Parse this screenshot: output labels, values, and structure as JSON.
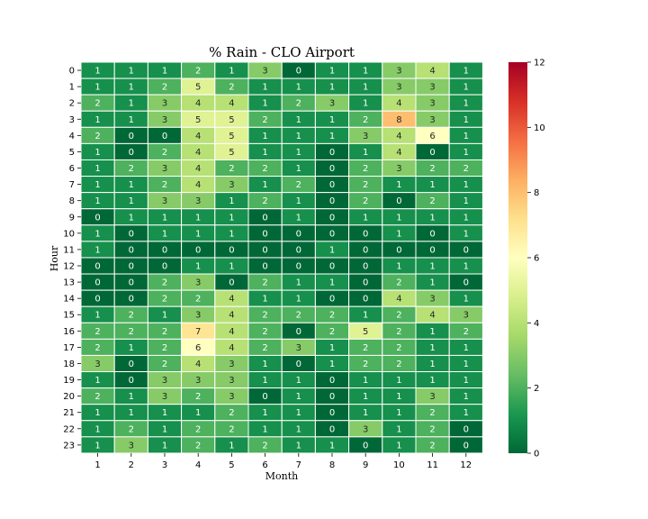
{
  "chart_data": {
    "type": "heatmap",
    "title": "% Rain - CLO Airport",
    "xlabel": "Month",
    "ylabel": "Hour",
    "x_categories": [
      "1",
      "2",
      "3",
      "4",
      "5",
      "6",
      "7",
      "8",
      "9",
      "10",
      "11",
      "12"
    ],
    "y_categories": [
      "0",
      "1",
      "2",
      "3",
      "4",
      "5",
      "6",
      "7",
      "8",
      "9",
      "10",
      "11",
      "12",
      "13",
      "14",
      "15",
      "16",
      "17",
      "18",
      "19",
      "20",
      "21",
      "22",
      "23"
    ],
    "values": [
      [
        1,
        1,
        1,
        2,
        1,
        3,
        0,
        1,
        1,
        3,
        4,
        1
      ],
      [
        1,
        1,
        2,
        5,
        2,
        1,
        1,
        1,
        1,
        3,
        3,
        1
      ],
      [
        2,
        1,
        3,
        4,
        4,
        1,
        2,
        3,
        1,
        4,
        3,
        1
      ],
      [
        1,
        1,
        3,
        5,
        5,
        2,
        1,
        1,
        2,
        8,
        3,
        1
      ],
      [
        2,
        0,
        0,
        4,
        5,
        1,
        1,
        1,
        3,
        4,
        6,
        1
      ],
      [
        1,
        0,
        2,
        4,
        5,
        1,
        1,
        0,
        1,
        4,
        0,
        1
      ],
      [
        1,
        2,
        3,
        4,
        2,
        2,
        1,
        0,
        2,
        3,
        2,
        2
      ],
      [
        1,
        1,
        2,
        4,
        3,
        1,
        2,
        0,
        2,
        1,
        1,
        1
      ],
      [
        1,
        1,
        3,
        3,
        1,
        2,
        1,
        0,
        2,
        0,
        2,
        1
      ],
      [
        0,
        1,
        1,
        1,
        1,
        0,
        1,
        0,
        1,
        1,
        1,
        1
      ],
      [
        1,
        0,
        1,
        1,
        1,
        0,
        0,
        0,
        0,
        1,
        0,
        1
      ],
      [
        1,
        0,
        0,
        0,
        0,
        0,
        0,
        1,
        0,
        0,
        0,
        0
      ],
      [
        0,
        0,
        0,
        1,
        1,
        0,
        0,
        0,
        0,
        1,
        1,
        1
      ],
      [
        0,
        0,
        2,
        3,
        0,
        2,
        1,
        1,
        0,
        2,
        1,
        0
      ],
      [
        0,
        0,
        2,
        2,
        4,
        1,
        1,
        0,
        0,
        4,
        3,
        1
      ],
      [
        1,
        2,
        1,
        3,
        4,
        2,
        2,
        2,
        1,
        2,
        4,
        3
      ],
      [
        2,
        2,
        2,
        7,
        4,
        2,
        0,
        2,
        5,
        2,
        1,
        2
      ],
      [
        2,
        1,
        2,
        6,
        4,
        2,
        3,
        1,
        2,
        2,
        1,
        1
      ],
      [
        3,
        0,
        2,
        4,
        3,
        1,
        0,
        1,
        2,
        2,
        1,
        1
      ],
      [
        1,
        0,
        3,
        3,
        3,
        1,
        1,
        0,
        1,
        1,
        1,
        1
      ],
      [
        2,
        1,
        3,
        2,
        3,
        0,
        1,
        0,
        1,
        1,
        3,
        1
      ],
      [
        1,
        1,
        1,
        1,
        2,
        1,
        1,
        0,
        1,
        1,
        2,
        1
      ],
      [
        1,
        2,
        1,
        2,
        2,
        1,
        1,
        0,
        3,
        1,
        2,
        0
      ],
      [
        1,
        3,
        1,
        2,
        1,
        2,
        1,
        1,
        0,
        1,
        2,
        0
      ]
    ],
    "colorbar": {
      "min": 0,
      "max": 12,
      "ticks": [
        "0",
        "2",
        "4",
        "6",
        "8",
        "10",
        "12"
      ],
      "colormap": "RdYlGn_r"
    },
    "grid": false
  }
}
